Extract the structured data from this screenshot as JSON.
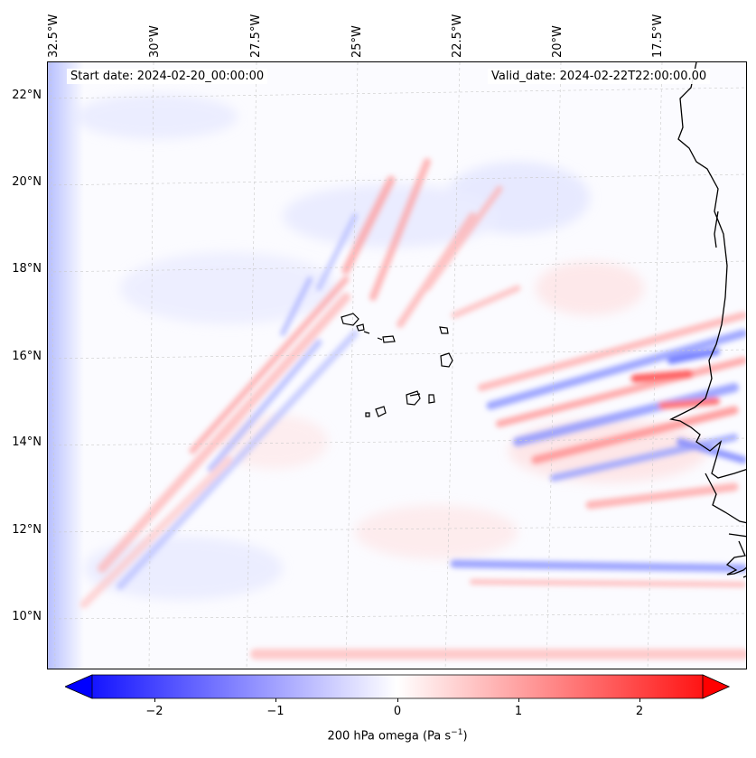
{
  "map": {
    "start_date_label": "Start date: 2024-02-20_00:00:00",
    "valid_date_label": "Valid_date: 2024-02-22T22:00:00.00",
    "lon_labels": [
      "32.5°W",
      "30°W",
      "27.5°W",
      "25°W",
      "22.5°W",
      "20°W",
      "17.5°W"
    ],
    "lat_labels": [
      "22°N",
      "20°N",
      "18°N",
      "16°N",
      "14°N",
      "12°N",
      "10°N"
    ],
    "field": "200 hPa omega",
    "colormap": "bwr",
    "colors": {
      "negative": "#0000ff",
      "zero": "#ffffff",
      "positive": "#ff0000",
      "coastline": "#000000"
    }
  },
  "colorbar": {
    "label": "200 hPa omega (Pa s",
    "label_exponent": "−1",
    "label_close": ")",
    "ticks": [
      "−2",
      "−1",
      "0",
      "1",
      "2"
    ],
    "tick_values": [
      -2,
      -1,
      0,
      1,
      2
    ],
    "range": [
      -2.5,
      2.5
    ],
    "extend": "both"
  }
}
